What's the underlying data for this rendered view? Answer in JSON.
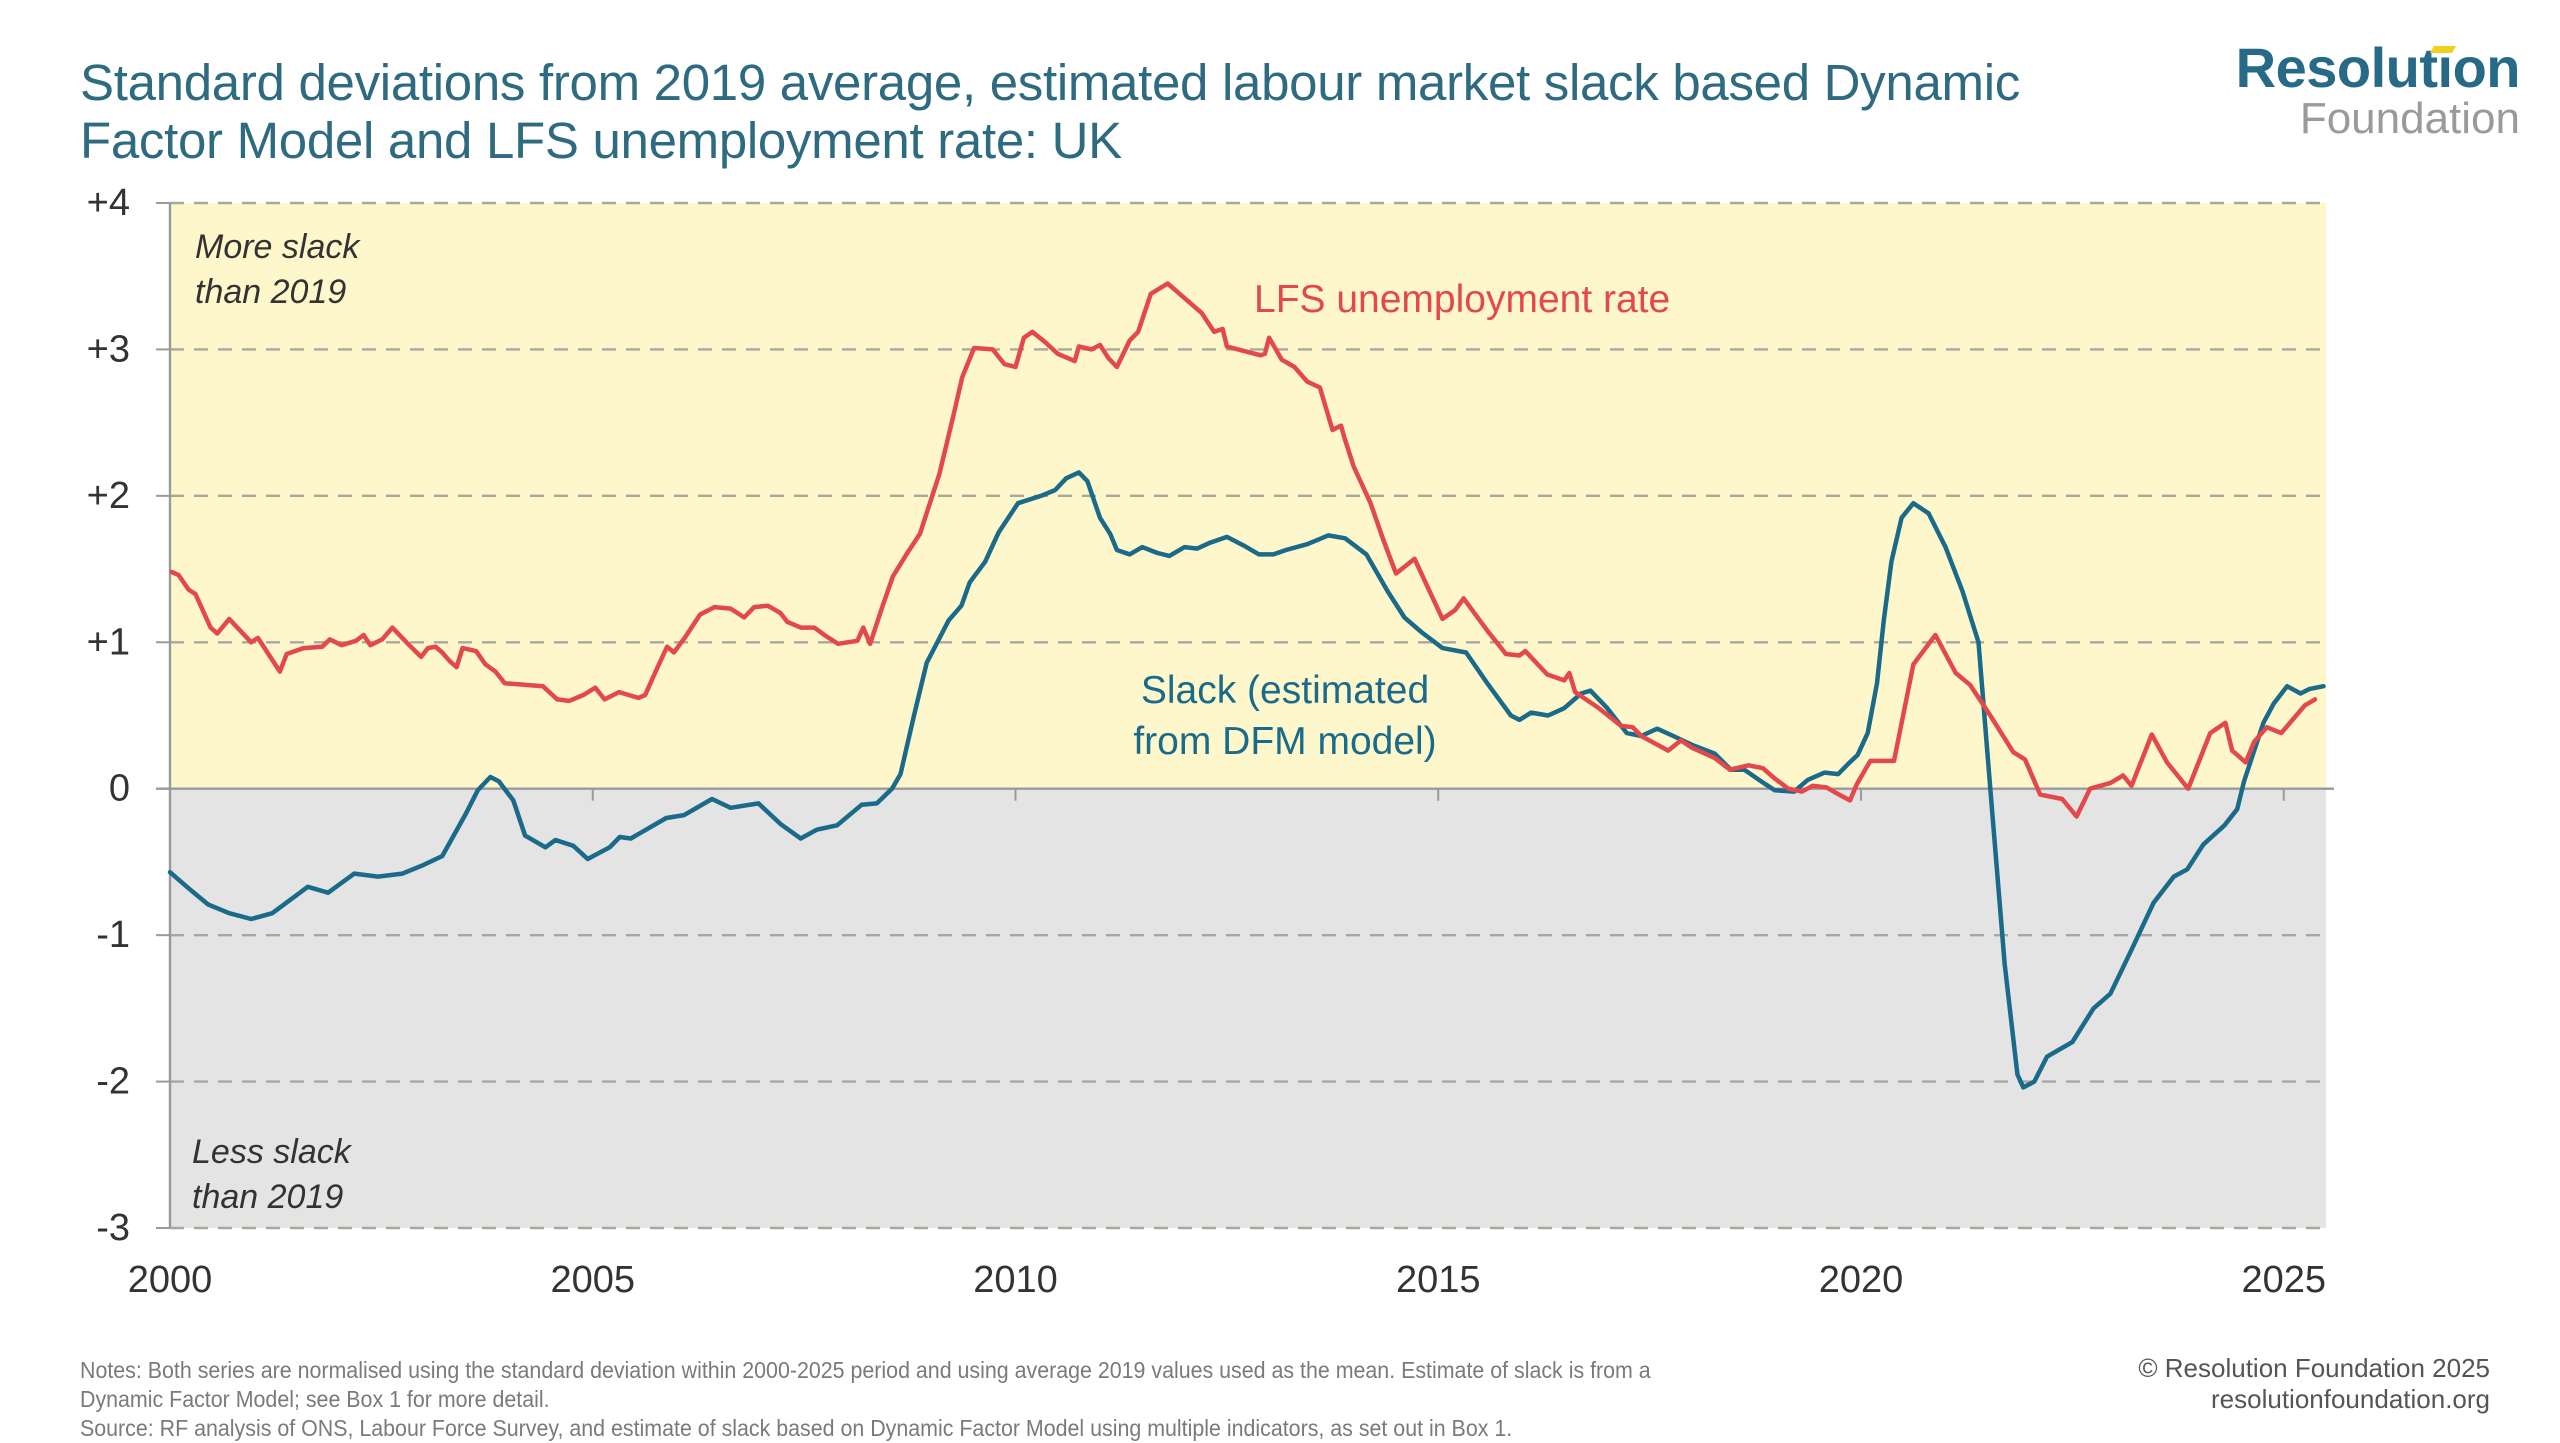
{
  "header": {
    "title_lines": [
      "Standard deviations from 2019 average, estimated labour market slack based Dynamic",
      "Factor Model and LFS unemployment rate: UK"
    ],
    "logo": {
      "line1": "Resolution",
      "line2": "Foundation"
    }
  },
  "footer": {
    "notes_lines": [
      "Notes: Both series are normalised using the standard deviation within 2000-2025 period and using average 2019 values used as the mean. Estimate of slack is from a",
      "Dynamic Factor Model; see Box 1 for more detail.",
      "Source: RF analysis of ONS, Labour Force Survey, and estimate of slack based on Dynamic Factor Model using multiple indicators, as set out in Box 1."
    ],
    "copyright": "© Resolution Foundation 2025",
    "website": "resolutionfoundation.org"
  },
  "colors": {
    "title": "#2f6b80",
    "slack": "#1a6a8a",
    "lfs": "#e3484c",
    "above_zero_bg": "#fff7cc",
    "below_zero_bg": "#e4e4e4",
    "grid": "#a9a89c"
  },
  "chart_data": {
    "type": "line",
    "title": "Standard deviations from 2019 average, estimated labour market slack based Dynamic Factor Model and LFS unemployment rate: UK",
    "xlabel": "",
    "ylabel": "",
    "xlim": [
      2000,
      2025.5
    ],
    "ylim": [
      -3,
      4
    ],
    "x_ticks": [
      2000,
      2005,
      2010,
      2015,
      2020,
      2025
    ],
    "x_tick_labels": [
      "2000",
      "2005",
      "2010",
      "2015",
      "2020",
      "2025"
    ],
    "y_ticks": [
      4,
      3,
      2,
      1,
      0,
      -1,
      -2,
      -3
    ],
    "y_tick_labels": [
      "+4",
      "+3",
      "+2",
      "+1",
      "0",
      "-1",
      "-2",
      "-3"
    ],
    "grid": "horizontal dashed",
    "shaded_regions": [
      {
        "label": "More slack than 2019",
        "label_lines": [
          "More slack",
          "than 2019"
        ],
        "from": 0,
        "to": 4
      },
      {
        "label": "Less slack than 2019",
        "label_lines": [
          "Less slack",
          "than 2019"
        ],
        "from": -3,
        "to": 0
      }
    ],
    "series": [
      {
        "name": "LFS unemployment rate",
        "label_lines": [
          "LFS unemployment rate"
        ],
        "color": "#e3484c",
        "x": [
          2000.02,
          2000.1,
          2000.22,
          2000.3,
          2000.48,
          2000.56,
          2000.7,
          2000.96,
          2001.04,
          2001.3,
          2001.38,
          2001.58,
          2001.8,
          2001.89,
          2002.03,
          2002.2,
          2002.29,
          2002.37,
          2002.51,
          2002.63,
          2002.83,
          2002.97,
          2003.05,
          2003.14,
          2003.22,
          2003.31,
          2003.39,
          2003.46,
          2003.62,
          2003.73,
          2003.85,
          2003.96,
          2004.19,
          2004.41,
          2004.58,
          2004.72,
          2004.89,
          2005.03,
          2005.14,
          2005.31,
          2005.54,
          2005.62,
          2005.76,
          2005.88,
          2005.96,
          2006.1,
          2006.27,
          2006.44,
          2006.63,
          2006.79,
          2006.91,
          2007.07,
          2007.22,
          2007.3,
          2007.46,
          2007.62,
          2007.74,
          2007.9,
          2008.13,
          2008.2,
          2008.28,
          2008.43,
          2008.55,
          2008.71,
          2008.87,
          2009.1,
          2009.27,
          2009.37,
          2009.51,
          2009.73,
          2009.87,
          2010.0,
          2010.1,
          2010.2,
          2010.35,
          2010.5,
          2010.7,
          2010.75,
          2010.9,
          2011.0,
          2011.1,
          2011.2,
          2011.35,
          2011.45,
          2011.6,
          2011.8,
          2012.0,
          2012.2,
          2012.35,
          2012.45,
          2012.5,
          2012.7,
          2012.9,
          2012.95,
          2013.0,
          2013.15,
          2013.3,
          2013.45,
          2013.6,
          2013.75,
          2013.85,
          2013.9,
          2014.0,
          2014.2,
          2014.35,
          2014.5,
          2014.72,
          2014.88,
          2015.05,
          2015.2,
          2015.3,
          2015.58,
          2015.8,
          2015.96,
          2016.03,
          2016.29,
          2016.49,
          2016.55,
          2016.62,
          2016.9,
          2017.16,
          2017.3,
          2017.4,
          2017.72,
          2017.87,
          2018.0,
          2018.27,
          2018.45,
          2018.67,
          2018.84,
          2018.98,
          2019.14,
          2019.3,
          2019.43,
          2019.59,
          2019.74,
          2019.87,
          2019.95,
          2020.11,
          2020.39,
          2020.62,
          2020.88,
          2021.12,
          2021.29,
          2021.53,
          2021.8,
          2021.94,
          2022.12,
          2022.38,
          2022.55,
          2022.71,
          2022.95,
          2023.1,
          2023.2,
          2023.44,
          2023.62,
          2023.87,
          2024.13,
          2024.31,
          2024.39,
          2024.55,
          2024.65,
          2024.8,
          2024.97,
          2025.25,
          2025.37
        ],
        "values": [
          1.48,
          1.46,
          1.36,
          1.33,
          1.1,
          1.06,
          1.16,
          1.0,
          1.03,
          0.8,
          0.92,
          0.96,
          0.97,
          1.02,
          0.98,
          1.01,
          1.05,
          0.98,
          1.02,
          1.1,
          0.98,
          0.9,
          0.96,
          0.97,
          0.93,
          0.87,
          0.83,
          0.96,
          0.94,
          0.85,
          0.8,
          0.72,
          0.71,
          0.7,
          0.61,
          0.6,
          0.64,
          0.69,
          0.61,
          0.66,
          0.62,
          0.64,
          0.82,
          0.97,
          0.93,
          1.04,
          1.19,
          1.24,
          1.23,
          1.17,
          1.24,
          1.25,
          1.2,
          1.14,
          1.1,
          1.1,
          1.05,
          0.99,
          1.01,
          1.1,
          0.99,
          1.25,
          1.45,
          1.6,
          1.74,
          2.15,
          2.56,
          2.81,
          3.01,
          3.0,
          2.9,
          2.88,
          3.08,
          3.12,
          3.05,
          2.97,
          2.92,
          3.02,
          3.0,
          3.03,
          2.94,
          2.88,
          3.06,
          3.12,
          3.38,
          3.45,
          3.35,
          3.25,
          3.12,
          3.14,
          3.02,
          2.99,
          2.96,
          2.97,
          3.08,
          2.93,
          2.88,
          2.78,
          2.74,
          2.45,
          2.48,
          2.38,
          2.2,
          1.95,
          1.7,
          1.47,
          1.57,
          1.37,
          1.16,
          1.22,
          1.3,
          1.08,
          0.92,
          0.91,
          0.94,
          0.78,
          0.74,
          0.79,
          0.66,
          0.55,
          0.43,
          0.42,
          0.36,
          0.26,
          0.33,
          0.28,
          0.21,
          0.13,
          0.16,
          0.14,
          0.07,
          0.0,
          -0.02,
          0.02,
          0.01,
          -0.04,
          -0.08,
          0.03,
          0.19,
          0.19,
          0.85,
          1.05,
          0.79,
          0.71,
          0.5,
          0.25,
          0.2,
          -0.04,
          -0.07,
          -0.19,
          0.0,
          0.04,
          0.09,
          0.02,
          0.37,
          0.18,
          0.0,
          0.38,
          0.45,
          0.26,
          0.18,
          0.32,
          0.42,
          0.38,
          0.57,
          0.61
        ]
      },
      {
        "name": "Slack (estimated from DFM model)",
        "label_lines": [
          "Slack (estimated",
          "from DFM model)"
        ],
        "color": "#1a6a8a",
        "x": [
          2000.0,
          2000.22,
          2000.45,
          2000.7,
          2000.96,
          2001.21,
          2001.63,
          2001.87,
          2002.18,
          2002.46,
          2002.75,
          2003.0,
          2003.22,
          2003.5,
          2003.64,
          2003.79,
          2003.89,
          2004.06,
          2004.2,
          2004.44,
          2004.56,
          2004.77,
          2004.94,
          2005.2,
          2005.32,
          2005.45,
          2005.87,
          2006.08,
          2006.41,
          2006.63,
          2006.96,
          2007.22,
          2007.46,
          2007.65,
          2007.89,
          2008.18,
          2008.36,
          2008.54,
          2008.64,
          2008.8,
          2008.95,
          2009.21,
          2009.36,
          2009.46,
          2009.64,
          2009.8,
          2010.03,
          2010.3,
          2010.47,
          2010.6,
          2010.75,
          2010.85,
          2011.0,
          2011.12,
          2011.2,
          2011.35,
          2011.5,
          2011.68,
          2011.82,
          2012.0,
          2012.15,
          2012.3,
          2012.5,
          2012.7,
          2012.88,
          2013.05,
          2013.2,
          2013.45,
          2013.7,
          2013.9,
          2014.15,
          2014.4,
          2014.6,
          2014.8,
          2015.05,
          2015.33,
          2015.58,
          2015.86,
          2015.96,
          2016.1,
          2016.3,
          2016.49,
          2016.69,
          2016.8,
          2017.0,
          2017.23,
          2017.4,
          2017.59,
          2017.78,
          2018.0,
          2018.27,
          2018.46,
          2018.62,
          2018.82,
          2018.98,
          2019.21,
          2019.37,
          2019.57,
          2019.73,
          2019.85,
          2019.96,
          2020.08,
          2020.19,
          2020.27,
          2020.36,
          2020.48,
          2020.62,
          2020.8,
          2021.0,
          2021.2,
          2021.39,
          2021.53,
          2021.7,
          2021.85,
          2021.92,
          2022.05,
          2022.2,
          2022.5,
          2022.75,
          2022.95,
          2023.2,
          2023.46,
          2023.7,
          2023.86,
          2024.05,
          2024.3,
          2024.45,
          2024.53,
          2024.76,
          2024.88,
          2025.04,
          2025.2,
          2025.3,
          2025.47
        ],
        "values": [
          -0.57,
          -0.68,
          -0.79,
          -0.85,
          -0.89,
          -0.85,
          -0.67,
          -0.71,
          -0.58,
          -0.6,
          -0.58,
          -0.52,
          -0.46,
          -0.17,
          -0.01,
          0.08,
          0.05,
          -0.08,
          -0.32,
          -0.4,
          -0.35,
          -0.39,
          -0.48,
          -0.4,
          -0.33,
          -0.34,
          -0.2,
          -0.18,
          -0.07,
          -0.13,
          -0.1,
          -0.24,
          -0.34,
          -0.28,
          -0.25,
          -0.11,
          -0.1,
          0.0,
          0.1,
          0.5,
          0.86,
          1.15,
          1.25,
          1.41,
          1.55,
          1.75,
          1.95,
          2.0,
          2.04,
          2.12,
          2.16,
          2.1,
          1.85,
          1.74,
          1.63,
          1.6,
          1.65,
          1.61,
          1.59,
          1.65,
          1.64,
          1.68,
          1.72,
          1.66,
          1.6,
          1.6,
          1.63,
          1.67,
          1.73,
          1.71,
          1.6,
          1.35,
          1.17,
          1.07,
          0.96,
          0.93,
          0.72,
          0.5,
          0.47,
          0.52,
          0.5,
          0.55,
          0.65,
          0.67,
          0.55,
          0.38,
          0.36,
          0.41,
          0.36,
          0.3,
          0.24,
          0.13,
          0.13,
          0.05,
          -0.01,
          -0.02,
          0.06,
          0.11,
          0.1,
          0.17,
          0.23,
          0.38,
          0.72,
          1.15,
          1.55,
          1.85,
          1.95,
          1.88,
          1.65,
          1.35,
          1.0,
          0.0,
          -1.2,
          -1.95,
          -2.04,
          -2.0,
          -1.83,
          -1.73,
          -1.5,
          -1.4,
          -1.1,
          -0.78,
          -0.6,
          -0.55,
          -0.38,
          -0.25,
          -0.14,
          0.05,
          0.45,
          0.58,
          0.7,
          0.65,
          0.68,
          0.7
        ]
      }
    ]
  }
}
